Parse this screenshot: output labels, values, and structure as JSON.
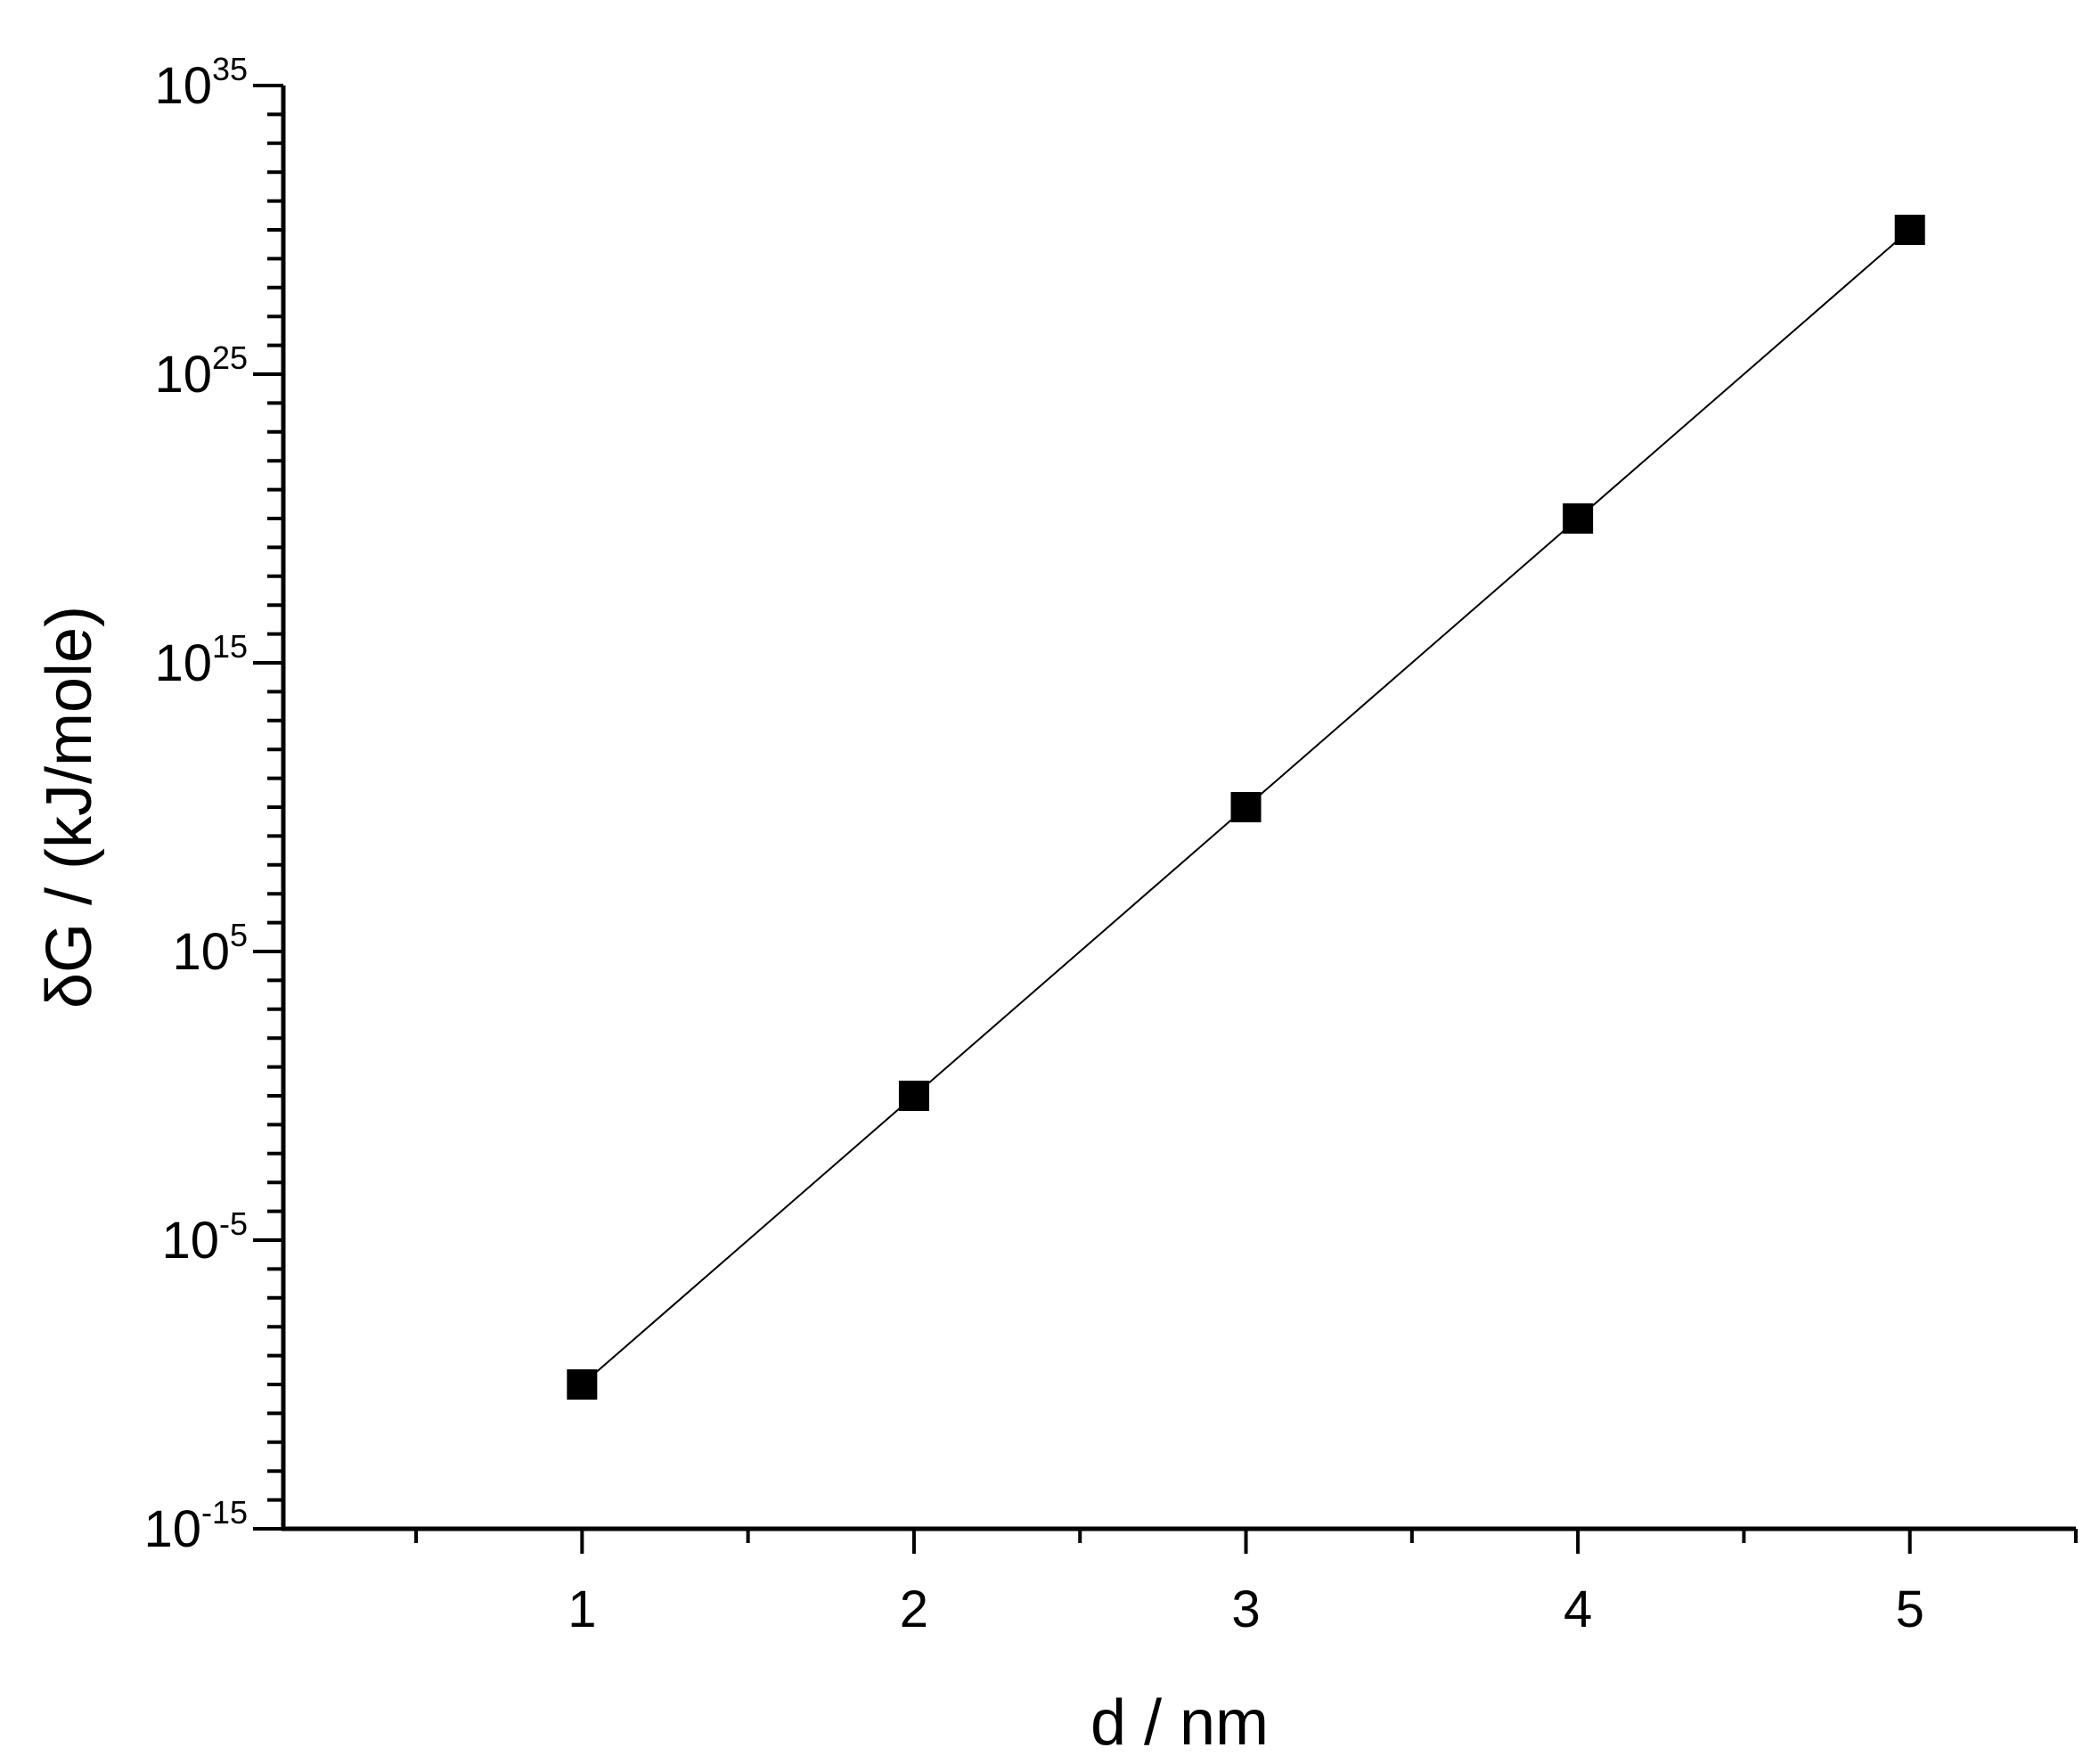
{
  "chart_data": {
    "type": "line",
    "xlabel": "d / nm",
    "ylabel": "δG / (kJ/mole)",
    "yscale": "log",
    "xlim": [
      0.1,
      5.5
    ],
    "ylim": [
      1e-15,
      1e+35
    ],
    "x_ticks": [
      "1",
      "2",
      "3",
      "4",
      "5"
    ],
    "y_ticks": [
      {
        "base": "10",
        "exp": "35",
        "value": 1e+35
      },
      {
        "base": "10",
        "exp": "25",
        "value": 1e+25
      },
      {
        "base": "10",
        "exp": "15",
        "value": 1000000000000000.0
      },
      {
        "base": "10",
        "exp": "5",
        "value": 100000.0
      },
      {
        "base": "10",
        "exp": "-5",
        "value": 1e-05
      },
      {
        "base": "10",
        "exp": "-15",
        "value": 1e-15
      }
    ],
    "grid": false,
    "legend": "none",
    "series": [
      {
        "marker": "square",
        "color": "#000000",
        "x": [
          1,
          2,
          3,
          4,
          5
        ],
        "y": [
          1e-10,
          1.0,
          10000000000.0,
          1e+20,
          1e+30
        ]
      }
    ]
  }
}
